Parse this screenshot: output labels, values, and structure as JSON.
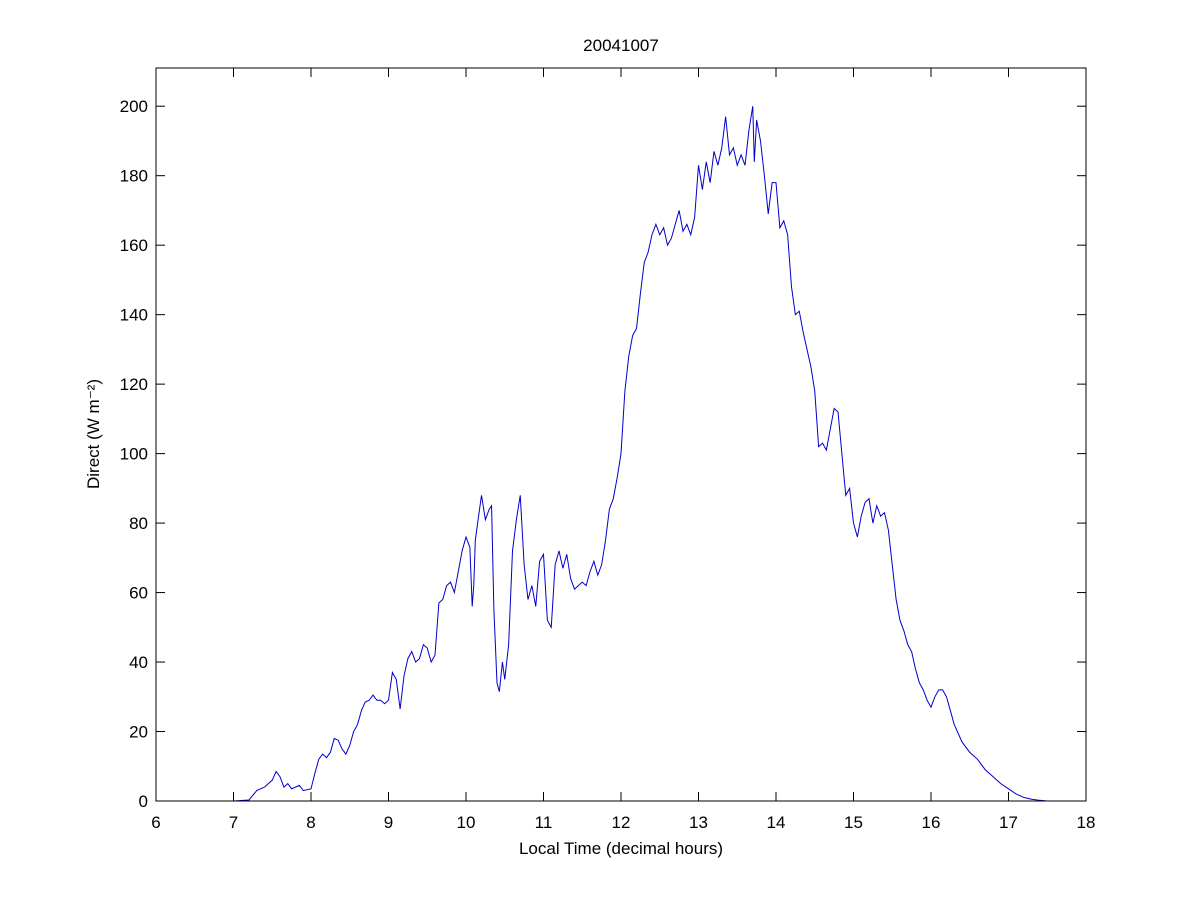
{
  "chart_data": {
    "type": "line",
    "title": "20041007",
    "xlabel": "Local Time (decimal hours)",
    "ylabel": "Direct (W m⁻²)",
    "xlim": [
      6,
      18
    ],
    "ylim": [
      0,
      211
    ],
    "xticks": [
      6,
      7,
      8,
      9,
      10,
      11,
      12,
      13,
      14,
      15,
      16,
      17,
      18
    ],
    "yticks": [
      0,
      20,
      40,
      60,
      80,
      100,
      120,
      140,
      160,
      180,
      200
    ],
    "grid": false,
    "color": "#0000cc",
    "x": [
      6.6,
      7.0,
      7.2,
      7.3,
      7.4,
      7.5,
      7.55,
      7.6,
      7.65,
      7.7,
      7.75,
      7.85,
      7.9,
      8.0,
      8.05,
      8.1,
      8.15,
      8.2,
      8.25,
      8.3,
      8.35,
      8.4,
      8.45,
      8.5,
      8.55,
      8.6,
      8.65,
      8.7,
      8.75,
      8.8,
      8.85,
      8.9,
      8.95,
      9.0,
      9.05,
      9.1,
      9.15,
      9.2,
      9.25,
      9.3,
      9.35,
      9.4,
      9.45,
      9.5,
      9.55,
      9.6,
      9.65,
      9.7,
      9.75,
      9.8,
      9.85,
      9.9,
      9.95,
      10.0,
      10.05,
      10.08,
      10.1,
      10.12,
      10.15,
      10.2,
      10.25,
      10.3,
      10.33,
      10.36,
      10.4,
      10.43,
      10.47,
      10.5,
      10.55,
      10.6,
      10.65,
      10.7,
      10.75,
      10.8,
      10.85,
      10.9,
      10.95,
      11.0,
      11.05,
      11.1,
      11.15,
      11.2,
      11.25,
      11.3,
      11.35,
      11.4,
      11.45,
      11.5,
      11.55,
      11.6,
      11.65,
      11.7,
      11.75,
      11.8,
      11.85,
      11.9,
      11.95,
      12.0,
      12.05,
      12.1,
      12.15,
      12.2,
      12.25,
      12.3,
      12.35,
      12.4,
      12.45,
      12.5,
      12.55,
      12.6,
      12.65,
      12.7,
      12.75,
      12.8,
      12.85,
      12.9,
      12.95,
      13.0,
      13.05,
      13.1,
      13.15,
      13.2,
      13.25,
      13.3,
      13.35,
      13.4,
      13.45,
      13.5,
      13.55,
      13.6,
      13.65,
      13.7,
      13.72,
      13.75,
      13.8,
      13.85,
      13.9,
      13.95,
      14.0,
      14.05,
      14.1,
      14.15,
      14.2,
      14.25,
      14.3,
      14.35,
      14.4,
      14.45,
      14.5,
      14.55,
      14.6,
      14.65,
      14.7,
      14.75,
      14.8,
      14.85,
      14.9,
      14.95,
      15.0,
      15.05,
      15.1,
      15.15,
      15.2,
      15.25,
      15.3,
      15.35,
      15.4,
      15.45,
      15.5,
      15.55,
      15.6,
      15.65,
      15.7,
      15.75,
      15.8,
      15.85,
      15.9,
      15.95,
      16.0,
      16.05,
      16.1,
      16.15,
      16.2,
      16.25,
      16.3,
      16.4,
      16.5,
      16.6,
      16.7,
      16.8,
      16.9,
      17.0,
      17.1,
      17.2,
      17.3,
      17.4,
      17.5
    ],
    "values": [
      0,
      0,
      0.3,
      3,
      4,
      6,
      8.5,
      7,
      4,
      5,
      3.5,
      4.5,
      3,
      3.5,
      8,
      12,
      13.5,
      12.5,
      14,
      18,
      17.5,
      15,
      13.5,
      16,
      20,
      22,
      26,
      28.5,
      29,
      30.5,
      29,
      29,
      28,
      29,
      37,
      35,
      26.5,
      36,
      41,
      43,
      40,
      41,
      45,
      44,
      40,
      42,
      57,
      58,
      62,
      63,
      60,
      66,
      72,
      76,
      73,
      56,
      62,
      75,
      80,
      88,
      81,
      84,
      85,
      55,
      34,
      31.5,
      40,
      35,
      45,
      72,
      81,
      88,
      68,
      58,
      62,
      56,
      69,
      71,
      52,
      50,
      68,
      72,
      67,
      71,
      64,
      61,
      62,
      63,
      62,
      66,
      69,
      65,
      68,
      75,
      84,
      87,
      93,
      100,
      118,
      128,
      134,
      136,
      146,
      155,
      158,
      163,
      166,
      163,
      165,
      160,
      162,
      166,
      170,
      164,
      166,
      163,
      168,
      183,
      176,
      184,
      178,
      187,
      183,
      188,
      197,
      186,
      188,
      183,
      186,
      183,
      193,
      200,
      184,
      196,
      190,
      180,
      169,
      178,
      178,
      165,
      167,
      163,
      148,
      140,
      141,
      135,
      130,
      125,
      118,
      102,
      103,
      101,
      107,
      113,
      112,
      100,
      88,
      90,
      80,
      76,
      82,
      86,
      87,
      80,
      85,
      82,
      83,
      78,
      68,
      58,
      52,
      49,
      45,
      43,
      38,
      34,
      32,
      29,
      27,
      30,
      32,
      32,
      30,
      26,
      22,
      17,
      14,
      12,
      9,
      7,
      5,
      3.5,
      2,
      1,
      0.5,
      0.2,
      0
    ]
  }
}
